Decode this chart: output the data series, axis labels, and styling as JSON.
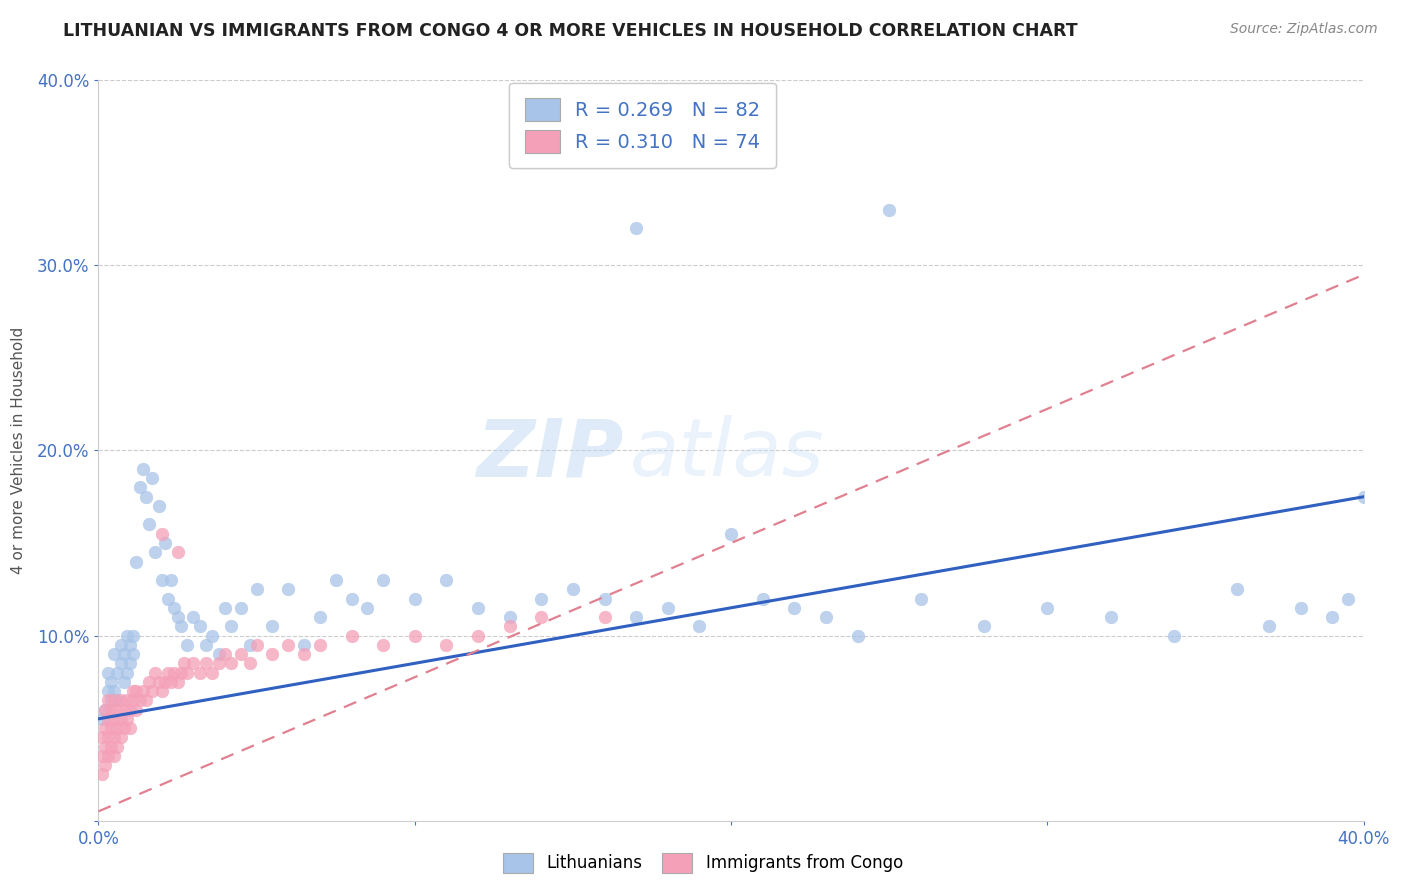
{
  "title": "LITHUANIAN VS IMMIGRANTS FROM CONGO 4 OR MORE VEHICLES IN HOUSEHOLD CORRELATION CHART",
  "source": "Source: ZipAtlas.com",
  "ylabel": "4 or more Vehicles in Household",
  "watermark": "ZIPatlas",
  "x_min": 0.0,
  "x_max": 0.4,
  "y_min": 0.0,
  "y_max": 0.4,
  "blue_color": "#a8c4e8",
  "pink_color": "#f4a0b8",
  "blue_line_color": "#3060c0",
  "pink_line_color": "#e08090",
  "R_blue": 0.269,
  "N_blue": 82,
  "R_pink": 0.31,
  "N_pink": 74,
  "legend_label_blue": "Lithuanians",
  "legend_label_pink": "Immigrants from Congo",
  "blue_x": [
    0.001,
    0.002,
    0.003,
    0.003,
    0.004,
    0.004,
    0.005,
    0.005,
    0.006,
    0.006,
    0.007,
    0.007,
    0.008,
    0.008,
    0.009,
    0.009,
    0.01,
    0.01,
    0.011,
    0.011,
    0.012,
    0.013,
    0.014,
    0.015,
    0.016,
    0.017,
    0.018,
    0.019,
    0.02,
    0.021,
    0.022,
    0.023,
    0.024,
    0.025,
    0.026,
    0.028,
    0.03,
    0.032,
    0.034,
    0.036,
    0.038,
    0.04,
    0.042,
    0.045,
    0.048,
    0.05,
    0.055,
    0.06,
    0.065,
    0.07,
    0.075,
    0.08,
    0.085,
    0.09,
    0.1,
    0.11,
    0.12,
    0.13,
    0.14,
    0.15,
    0.16,
    0.17,
    0.18,
    0.19,
    0.2,
    0.21,
    0.22,
    0.23,
    0.24,
    0.26,
    0.28,
    0.3,
    0.32,
    0.34,
    0.36,
    0.37,
    0.38,
    0.39,
    0.395,
    0.4,
    0.17,
    0.25
  ],
  "blue_y": [
    0.055,
    0.06,
    0.07,
    0.08,
    0.065,
    0.075,
    0.07,
    0.09,
    0.065,
    0.08,
    0.085,
    0.095,
    0.075,
    0.09,
    0.08,
    0.1,
    0.085,
    0.095,
    0.09,
    0.1,
    0.14,
    0.18,
    0.19,
    0.175,
    0.16,
    0.185,
    0.145,
    0.17,
    0.13,
    0.15,
    0.12,
    0.13,
    0.115,
    0.11,
    0.105,
    0.095,
    0.11,
    0.105,
    0.095,
    0.1,
    0.09,
    0.115,
    0.105,
    0.115,
    0.095,
    0.125,
    0.105,
    0.125,
    0.095,
    0.11,
    0.13,
    0.12,
    0.115,
    0.13,
    0.12,
    0.13,
    0.115,
    0.11,
    0.12,
    0.125,
    0.12,
    0.11,
    0.115,
    0.105,
    0.155,
    0.12,
    0.115,
    0.11,
    0.1,
    0.12,
    0.105,
    0.115,
    0.11,
    0.1,
    0.125,
    0.105,
    0.115,
    0.11,
    0.12,
    0.175,
    0.32,
    0.33
  ],
  "pink_x": [
    0.001,
    0.001,
    0.001,
    0.002,
    0.002,
    0.002,
    0.002,
    0.003,
    0.003,
    0.003,
    0.003,
    0.004,
    0.004,
    0.004,
    0.005,
    0.005,
    0.005,
    0.005,
    0.006,
    0.006,
    0.006,
    0.007,
    0.007,
    0.007,
    0.008,
    0.008,
    0.009,
    0.009,
    0.01,
    0.01,
    0.011,
    0.011,
    0.012,
    0.012,
    0.013,
    0.014,
    0.015,
    0.016,
    0.017,
    0.018,
    0.019,
    0.02,
    0.021,
    0.022,
    0.023,
    0.024,
    0.025,
    0.026,
    0.027,
    0.028,
    0.03,
    0.032,
    0.034,
    0.036,
    0.038,
    0.04,
    0.042,
    0.045,
    0.048,
    0.05,
    0.055,
    0.06,
    0.065,
    0.07,
    0.08,
    0.09,
    0.1,
    0.11,
    0.12,
    0.13,
    0.14,
    0.02,
    0.025,
    0.16
  ],
  "pink_y": [
    0.025,
    0.035,
    0.045,
    0.03,
    0.04,
    0.05,
    0.06,
    0.035,
    0.045,
    0.055,
    0.065,
    0.04,
    0.05,
    0.06,
    0.035,
    0.045,
    0.055,
    0.065,
    0.04,
    0.05,
    0.06,
    0.045,
    0.055,
    0.065,
    0.05,
    0.06,
    0.055,
    0.065,
    0.05,
    0.06,
    0.065,
    0.07,
    0.06,
    0.07,
    0.065,
    0.07,
    0.065,
    0.075,
    0.07,
    0.08,
    0.075,
    0.07,
    0.075,
    0.08,
    0.075,
    0.08,
    0.075,
    0.08,
    0.085,
    0.08,
    0.085,
    0.08,
    0.085,
    0.08,
    0.085,
    0.09,
    0.085,
    0.09,
    0.085,
    0.095,
    0.09,
    0.095,
    0.09,
    0.095,
    0.1,
    0.095,
    0.1,
    0.095,
    0.1,
    0.105,
    0.11,
    0.155,
    0.145,
    0.11
  ]
}
